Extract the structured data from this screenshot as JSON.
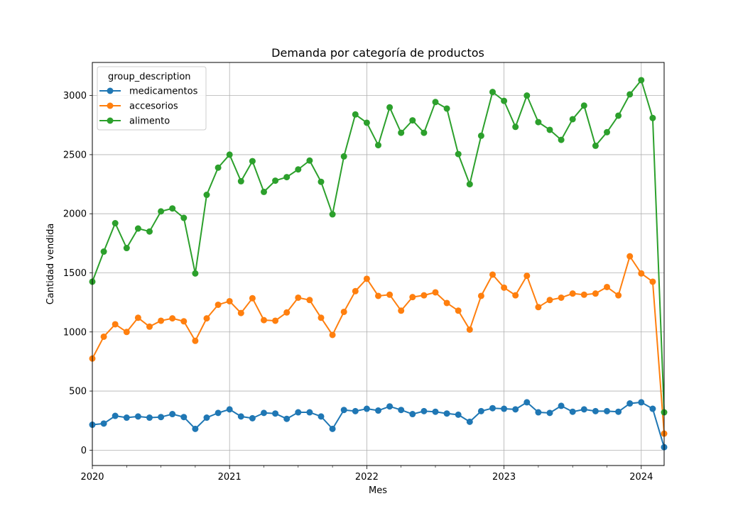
{
  "chart_data": {
    "type": "line",
    "title": "Demanda por categoría de productos",
    "xlabel": "Mes",
    "ylabel": "Cantidad vendida",
    "x_start": "2020-01",
    "x_tick_labels": [
      "2020",
      "2021",
      "2022",
      "2023",
      "2024"
    ],
    "y_ticks": [
      0,
      500,
      1000,
      1500,
      2000,
      2500,
      3000
    ],
    "ylim": [
      -130,
      3280
    ],
    "grid": true,
    "legend_title": "group_description",
    "legend_position": "top-left",
    "x": [
      "2020-01",
      "2020-02",
      "2020-03",
      "2020-04",
      "2020-05",
      "2020-06",
      "2020-07",
      "2020-08",
      "2020-09",
      "2020-10",
      "2020-11",
      "2020-12",
      "2021-01",
      "2021-02",
      "2021-03",
      "2021-04",
      "2021-05",
      "2021-06",
      "2021-07",
      "2021-08",
      "2021-09",
      "2021-10",
      "2021-11",
      "2021-12",
      "2022-01",
      "2022-02",
      "2022-03",
      "2022-04",
      "2022-05",
      "2022-06",
      "2022-07",
      "2022-08",
      "2022-09",
      "2022-10",
      "2022-11",
      "2022-12",
      "2023-01",
      "2023-02",
      "2023-03",
      "2023-04",
      "2023-05",
      "2023-06",
      "2023-07",
      "2023-08",
      "2023-09",
      "2023-10",
      "2023-11",
      "2023-12",
      "2024-01",
      "2024-02",
      "2024-03"
    ],
    "series": [
      {
        "name": "medicamentos",
        "color": "#1f77b4",
        "values": [
          215,
          225,
          290,
          275,
          285,
          275,
          280,
          305,
          280,
          180,
          275,
          315,
          345,
          285,
          270,
          315,
          310,
          265,
          320,
          320,
          285,
          180,
          340,
          330,
          350,
          335,
          370,
          340,
          305,
          330,
          325,
          310,
          300,
          240,
          330,
          355,
          350,
          345,
          405,
          320,
          315,
          375,
          325,
          345,
          330,
          330,
          325,
          395,
          405,
          350,
          25
        ]
      },
      {
        "name": "accesorios",
        "color": "#ff7f0e",
        "values": [
          775,
          960,
          1065,
          1000,
          1120,
          1045,
          1095,
          1115,
          1090,
          925,
          1115,
          1230,
          1260,
          1160,
          1285,
          1100,
          1095,
          1165,
          1290,
          1270,
          1120,
          975,
          1170,
          1345,
          1450,
          1305,
          1315,
          1180,
          1295,
          1310,
          1335,
          1245,
          1180,
          1020,
          1305,
          1485,
          1375,
          1310,
          1475,
          1210,
          1270,
          1290,
          1325,
          1315,
          1325,
          1380,
          1310,
          1640,
          1495,
          1425,
          140
        ]
      },
      {
        "name": "alimento",
        "color": "#2ca02c",
        "values": [
          1425,
          1680,
          1920,
          1710,
          1875,
          1850,
          2020,
          2045,
          1965,
          1495,
          2160,
          2390,
          2500,
          2275,
          2445,
          2185,
          2280,
          2310,
          2375,
          2450,
          2270,
          1995,
          2485,
          2840,
          2770,
          2580,
          2900,
          2685,
          2790,
          2685,
          2945,
          2890,
          2505,
          2250,
          2660,
          3030,
          2955,
          2735,
          3000,
          2775,
          2710,
          2625,
          2800,
          2915,
          2575,
          2690,
          2830,
          3010,
          3130,
          2810,
          320
        ]
      }
    ]
  }
}
